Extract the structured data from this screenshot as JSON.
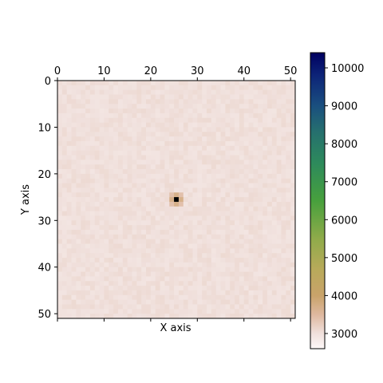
{
  "chart_data": {
    "type": "heatmap",
    "title": "",
    "xlabel": "X axis",
    "ylabel": "Y axis",
    "grid_size": 51,
    "x_range": [
      0,
      51
    ],
    "y_range": [
      0,
      51
    ],
    "y_axis_inverted": true,
    "x_ticks": [
      0,
      10,
      20,
      30,
      40,
      50
    ],
    "x_tick_labels": [
      "0",
      "10",
      "20",
      "30",
      "40",
      "50"
    ],
    "x_tick_labels_position": "top",
    "y_ticks": [
      0,
      10,
      20,
      30,
      40,
      50
    ],
    "y_tick_labels": [
      "0",
      "10",
      "20",
      "30",
      "40",
      "50"
    ],
    "background_level": 3000,
    "background_variation": 80,
    "peak": {
      "x": 25,
      "y": 25,
      "value": 10500
    },
    "peak_neighbors": [
      {
        "x": 24,
        "y": 25,
        "value": 3700
      },
      {
        "x": 26,
        "y": 25,
        "value": 3700
      },
      {
        "x": 25,
        "y": 24,
        "value": 3700
      },
      {
        "x": 25,
        "y": 26,
        "value": 3700
      },
      {
        "x": 24,
        "y": 24,
        "value": 3400
      },
      {
        "x": 26,
        "y": 24,
        "value": 3400
      },
      {
        "x": 24,
        "y": 26,
        "value": 3400
      },
      {
        "x": 26,
        "y": 26,
        "value": 3400
      }
    ],
    "colorbar": {
      "colormap": "gist_earth_r",
      "vmin": 2600,
      "vmax": 10400,
      "ticks": [
        3000,
        4000,
        5000,
        6000,
        7000,
        8000,
        9000,
        10000
      ],
      "tick_labels": [
        "3000",
        "4000",
        "5000",
        "6000",
        "7000",
        "8000",
        "9000",
        "10000"
      ],
      "color_stops": [
        {
          "value": 2600,
          "color": "#fdf8f8"
        },
        {
          "value": 3000,
          "color": "#f0e0dc"
        },
        {
          "value": 3500,
          "color": "#deb89f"
        },
        {
          "value": 4000,
          "color": "#c9a36a"
        },
        {
          "value": 4700,
          "color": "#b8aa5a"
        },
        {
          "value": 5500,
          "color": "#8fab4a"
        },
        {
          "value": 6500,
          "color": "#47a03d"
        },
        {
          "value": 7500,
          "color": "#2d8a5c"
        },
        {
          "value": 8300,
          "color": "#26706e"
        },
        {
          "value": 9000,
          "color": "#1a4f7f"
        },
        {
          "value": 9800,
          "color": "#0d2478"
        },
        {
          "value": 10400,
          "color": "#000060"
        }
      ]
    },
    "peak_cell_color": "#000000",
    "grid": false,
    "legend": "none"
  }
}
